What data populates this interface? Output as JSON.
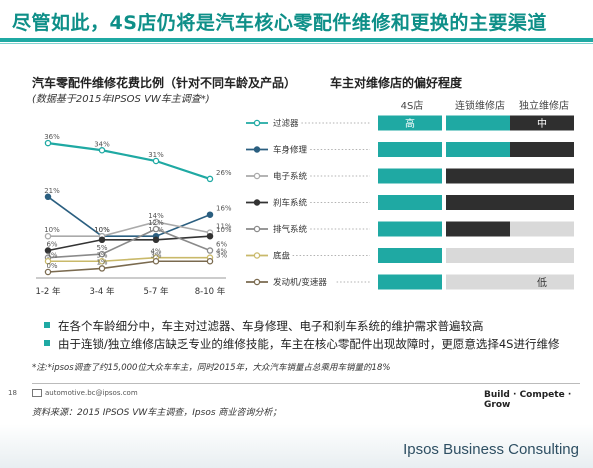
{
  "title": "尽管如此，4S店仍将是汽车核心零配件维修和更换的主要渠道",
  "left_chart": {
    "title": "汽车零配件维修花费比例（针对不同车龄及产品）",
    "subtitle": "(数据基于2015年IPSOS VW车主调查*)"
  },
  "right_chart": {
    "title": "车主对维修店的偏好程度",
    "columns": [
      "4S店",
      "连锁维修店",
      "独立维修店"
    ],
    "high_label": "高",
    "mid_label": "中",
    "low_label": "低"
  },
  "chart_data": [
    {
      "type": "line",
      "categories": [
        "1-2 年",
        "3-4 年",
        "5-7 年",
        "8-10 年"
      ],
      "ylim": [
        0,
        40
      ],
      "series": [
        {
          "name": "过滤器",
          "color": "#1fa9a3",
          "marker": "circle-open",
          "values": [
            36,
            34,
            31,
            26
          ],
          "labels": [
            "36%",
            "34%",
            "31%",
            "26%"
          ]
        },
        {
          "name": "车身修理",
          "color": "#2b5f80",
          "marker": "circle",
          "values": [
            21,
            10,
            10,
            16
          ],
          "labels": [
            "21%",
            "10%",
            "10%",
            "16%"
          ]
        },
        {
          "name": "电子系统",
          "color": "#aaaaaa",
          "marker": "circle-open",
          "values": [
            10,
            10,
            14,
            11
          ],
          "labels": [
            "10%",
            "10%",
            "14%",
            "11%"
          ]
        },
        {
          "name": "刹车系统",
          "color": "#333333",
          "marker": "circle",
          "values": [
            6,
            9,
            9,
            10
          ],
          "labels": [
            "6%",
            "",
            "",
            "10%"
          ]
        },
        {
          "name": "排气系统",
          "color": "#8a8a8a",
          "marker": "circle-open",
          "values": [
            4,
            5,
            12,
            6
          ],
          "labels": [
            "",
            "5%",
            "12%",
            "6%"
          ]
        },
        {
          "name": "底盘",
          "color": "#c9b96a",
          "marker": "circle-open",
          "values": [
            3,
            3,
            4,
            4
          ],
          "labels": [
            "3%",
            "3%",
            "4%",
            "4%"
          ]
        },
        {
          "name": "发动机/变速器",
          "color": "#7a6a4f",
          "marker": "circle-open",
          "values": [
            0,
            1,
            3,
            3
          ],
          "labels": [
            "0%",
            "1%",
            "3%",
            "3%"
          ]
        }
      ]
    },
    {
      "type": "table",
      "columns": [
        "4S店",
        "连锁维修店",
        "独立维修店"
      ],
      "rows": [
        {
          "name": "过滤器",
          "cells": [
            "teal",
            "teal",
            "dark"
          ],
          "labels": [
            "高",
            "",
            "中"
          ]
        },
        {
          "name": "车身修理",
          "cells": [
            "teal",
            "teal",
            "dark"
          ],
          "labels": [
            "",
            "",
            ""
          ]
        },
        {
          "name": "电子系统",
          "cells": [
            "teal",
            "dark",
            "dark"
          ],
          "labels": [
            "",
            "",
            ""
          ]
        },
        {
          "name": "刹车系统",
          "cells": [
            "teal",
            "dark",
            "dark"
          ],
          "labels": [
            "",
            "",
            ""
          ]
        },
        {
          "name": "排气系统",
          "cells": [
            "teal",
            "dark",
            "grey"
          ],
          "labels": [
            "",
            "",
            ""
          ]
        },
        {
          "name": "底盘",
          "cells": [
            "teal",
            "grey",
            "grey"
          ],
          "labels": [
            "",
            "",
            ""
          ]
        },
        {
          "name": "发动机/变速器",
          "cells": [
            "teal",
            "grey",
            "grey"
          ],
          "labels": [
            "",
            "",
            "低"
          ]
        }
      ],
      "colors": {
        "teal": "#1fa9a3",
        "dark": "#2f2f2f",
        "grey": "#d9d9d9"
      }
    }
  ],
  "bullets": [
    "在各个车龄细分中，车主对过滤器、车身修理、电子和刹车系统的维护需求普遍较高",
    "由于连锁/独立维修店缺乏专业的维修技能，车主在核心零配件出现故障时，更愿意选择4S进行维修"
  ],
  "note": "*注:*ipsos调查了约15,000位大众车车主，同时2015年，大众汽车销量占总乘用车销量的18%",
  "footer": {
    "page_number": "18",
    "email": "automotive.bc@ipsos.com",
    "tagline": "Build · Compete · Grow",
    "source": "资料来源：2015 IPSOS VW车主调查，Ipsos 商业咨询分析；",
    "brand": "Ipsos Business Consulting"
  }
}
